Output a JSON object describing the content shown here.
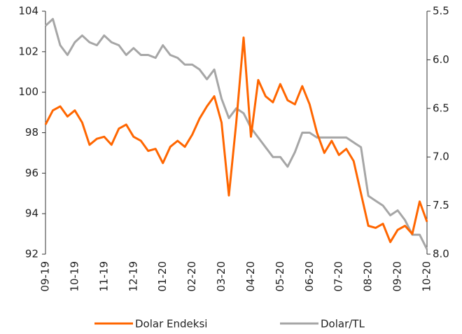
{
  "chart_data": {
    "type": "line",
    "categories": [
      "09-19",
      null,
      null,
      null,
      "10-19",
      null,
      null,
      null,
      "11-19",
      null,
      null,
      null,
      "12-19",
      null,
      null,
      null,
      "01-20",
      null,
      null,
      null,
      "02-20",
      null,
      null,
      null,
      "03-20",
      null,
      null,
      null,
      "04-20",
      null,
      null,
      null,
      "05-20",
      null,
      null,
      null,
      "06-20",
      null,
      null,
      null,
      "07-20",
      null,
      null,
      null,
      "08-20",
      null,
      null,
      null,
      "09-20",
      null,
      null,
      null,
      "10-20"
    ],
    "series": [
      {
        "name": "Dolar Endeksi",
        "color": "#ff6600",
        "axis": "y",
        "values": [
          98.4,
          99.1,
          99.3,
          98.8,
          99.1,
          98.5,
          97.4,
          97.7,
          97.8,
          97.4,
          98.2,
          98.4,
          97.8,
          97.6,
          97.1,
          97.2,
          96.5,
          97.3,
          97.6,
          97.3,
          97.9,
          98.7,
          99.3,
          99.8,
          98.5,
          94.9,
          98.5,
          102.7,
          97.8,
          100.6,
          99.8,
          99.5,
          100.4,
          99.6,
          99.4,
          100.3,
          99.4,
          98.0,
          97.0,
          97.6,
          96.9,
          97.2,
          96.6,
          95.0,
          93.4,
          93.3,
          93.5,
          92.6,
          93.2,
          93.4,
          93.0,
          94.6,
          93.6
        ]
      },
      {
        "name": "Dolar/TL",
        "color": "#a6a6a6",
        "axis": "y2",
        "values": [
          5.65,
          5.58,
          5.85,
          5.95,
          5.82,
          5.75,
          5.82,
          5.85,
          5.75,
          5.82,
          5.85,
          5.95,
          5.88,
          5.95,
          5.95,
          5.98,
          5.85,
          5.95,
          5.98,
          6.05,
          6.05,
          6.1,
          6.2,
          6.1,
          6.4,
          6.6,
          6.5,
          6.55,
          6.7,
          6.8,
          6.9,
          7.0,
          7.0,
          7.1,
          6.95,
          6.75,
          6.75,
          6.8,
          6.8,
          6.8,
          6.8,
          6.8,
          6.85,
          6.9,
          7.4,
          7.45,
          7.5,
          7.6,
          7.55,
          7.65,
          7.8,
          7.8,
          7.95
        ]
      }
    ],
    "ylim": [
      92,
      104
    ],
    "yticks": [
      92,
      94,
      96,
      98,
      100,
      102,
      104
    ],
    "y2lim": [
      8.0,
      5.5
    ],
    "y2ticks": [
      {
        "value": 8.0,
        "label": "8.0"
      },
      7.5,
      {
        "value": 7.0,
        "label": "7.0"
      },
      6.5,
      {
        "value": 6.0,
        "label": "6.0"
      },
      5.5
    ],
    "legend": "bottom"
  }
}
